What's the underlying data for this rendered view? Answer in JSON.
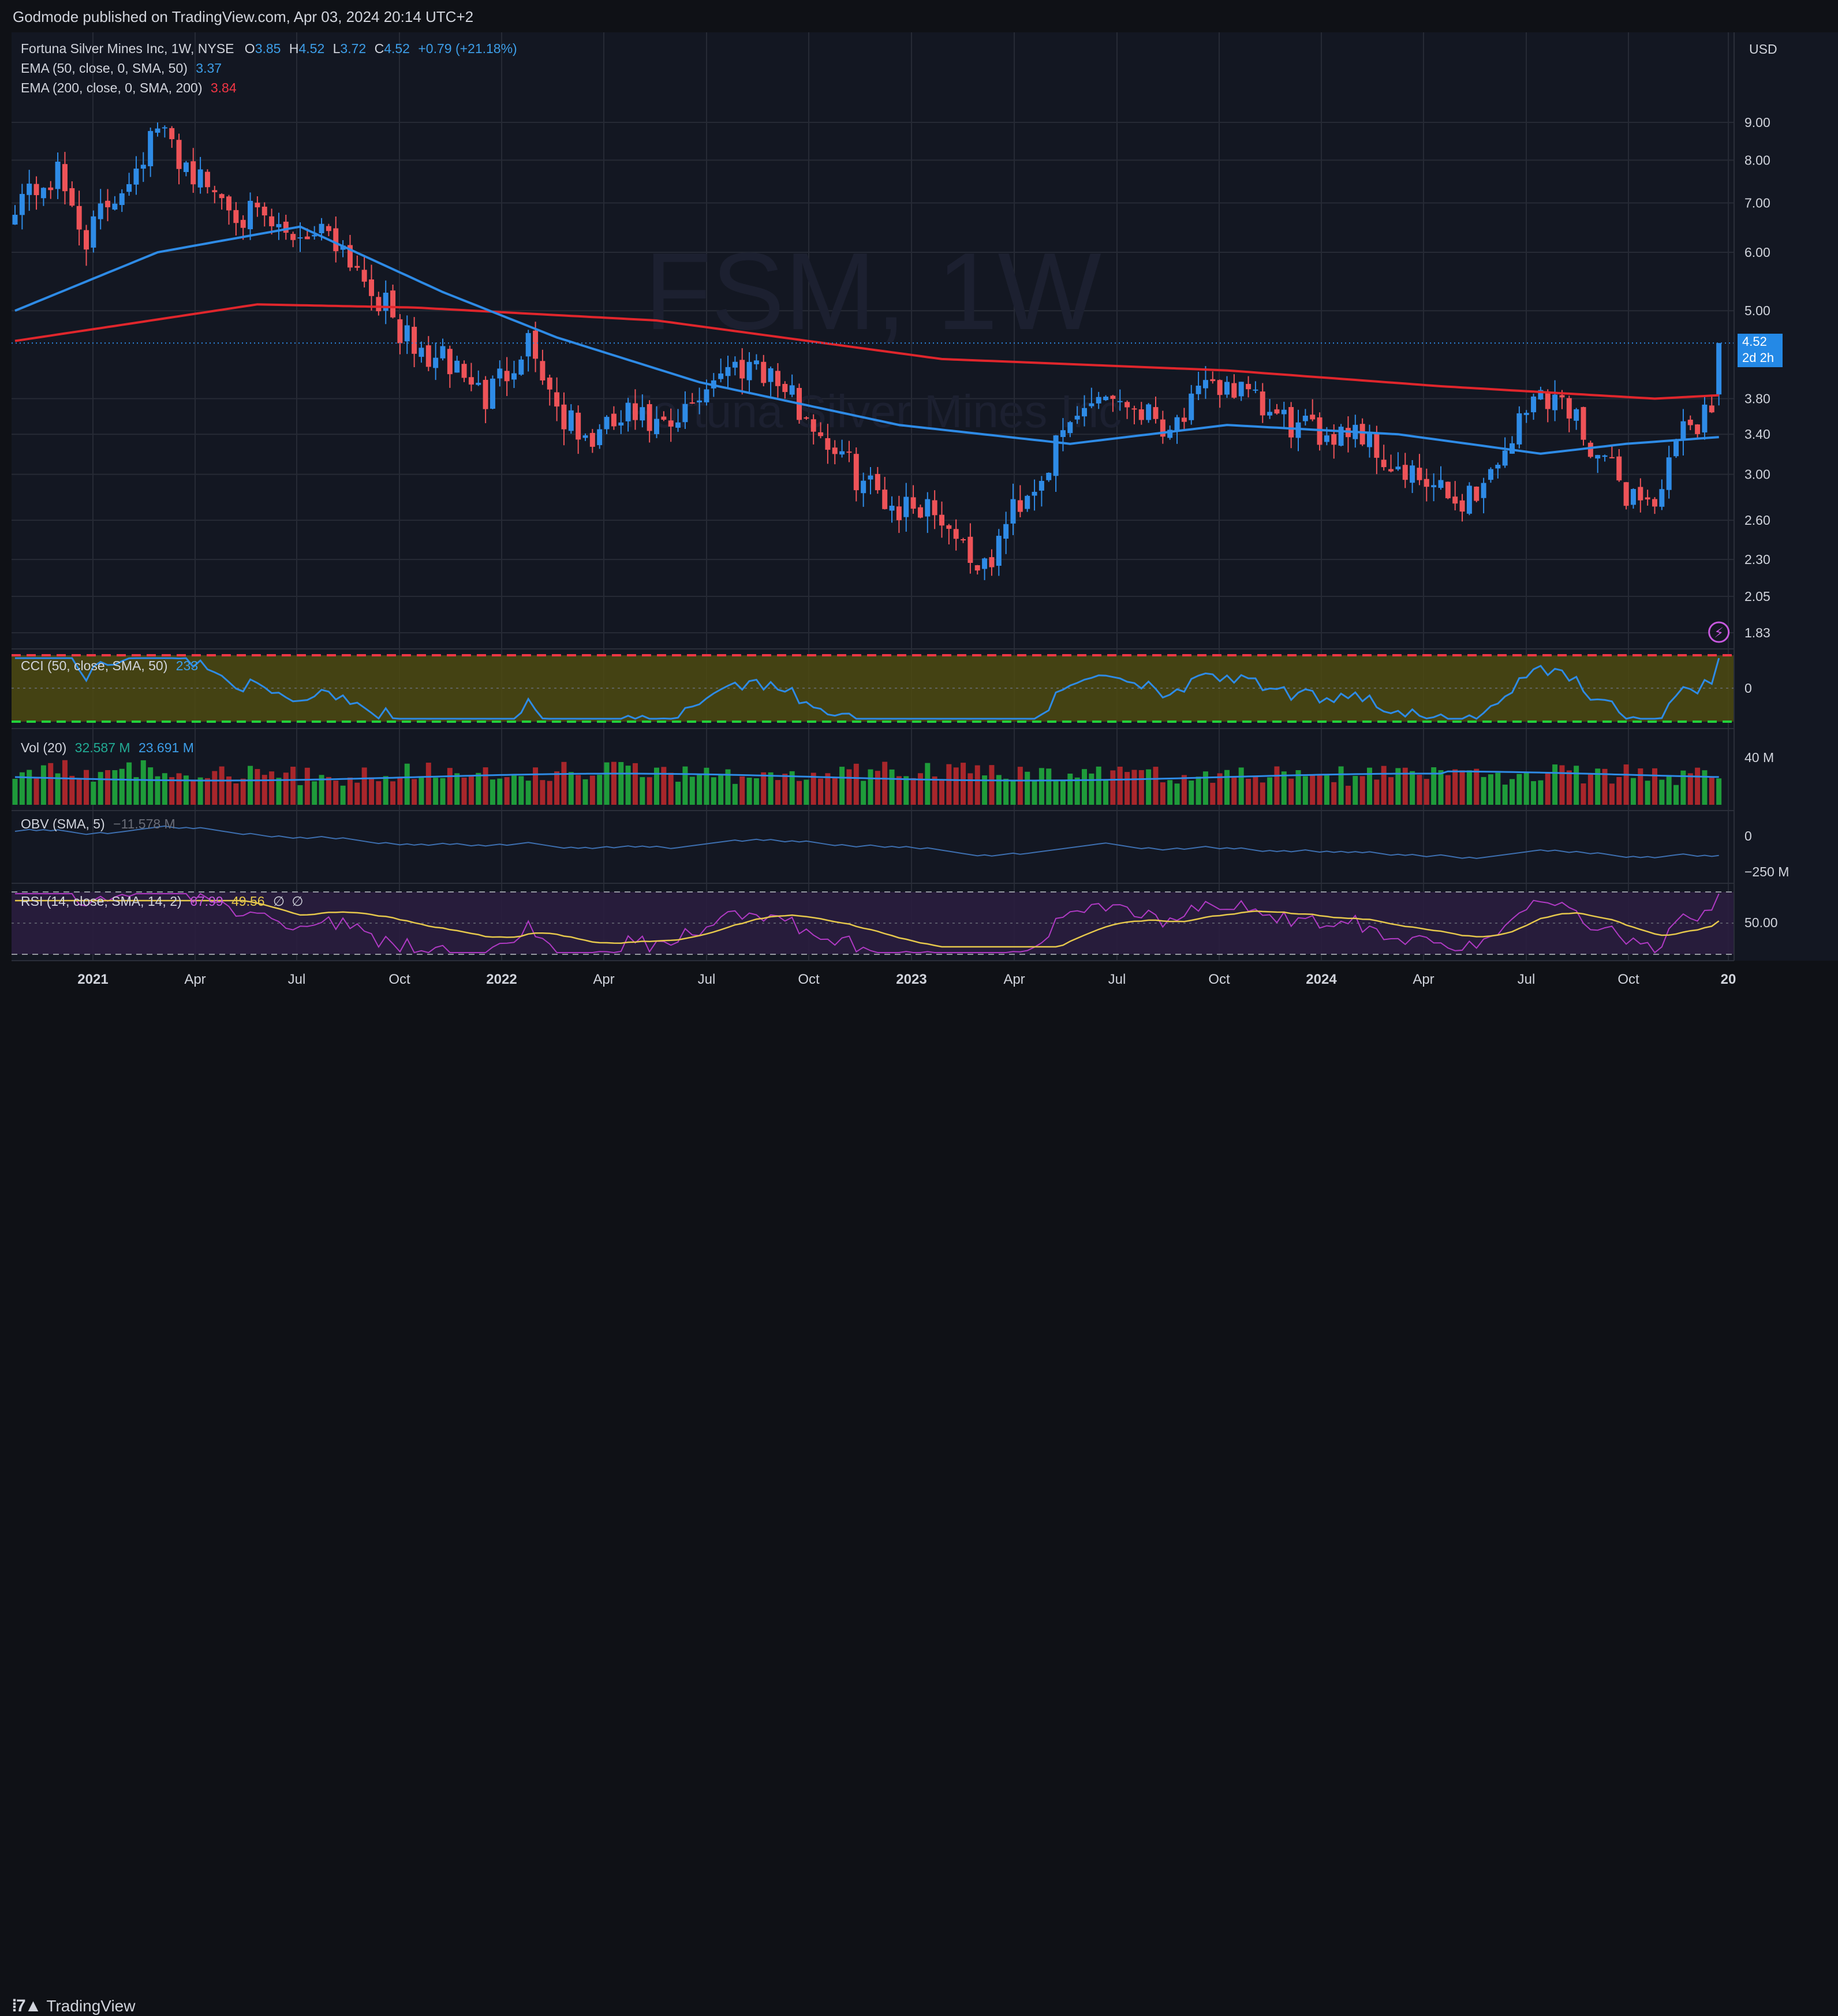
{
  "header": {
    "published": "Godmode published on TradingView.com, Apr 03, 2024 20:14 UTC+2"
  },
  "footer": {
    "brand": "TradingView",
    "logo_icon": "tradingview-logo-icon"
  },
  "currency": "USD",
  "colors": {
    "bg": "#131722",
    "up": "#2e8be6",
    "down": "#ee5358",
    "ema50": "#2e8be6",
    "ema200": "#e0262c",
    "vol_up": "#1e9b3a",
    "vol_down": "#a8262b",
    "cci_band": "#4d4a10",
    "rsi_band": "#2a1d3e"
  },
  "legend": {
    "symbol": "Fortuna Silver Mines Inc, 1W, NYSE",
    "o_label": "O",
    "o": "3.85",
    "h_label": "H",
    "h": "4.52",
    "l_label": "L",
    "l": "3.72",
    "c_label": "C",
    "c": "4.52",
    "change": "+0.79 (+21.18%)",
    "ema50_label": "EMA (50, close, 0, SMA, 50)",
    "ema50_value": "3.37",
    "ema200_label": "EMA (200, close, 0, SMA, 200)",
    "ema200_value": "3.84"
  },
  "watermark": {
    "symbol": "FSM, 1W",
    "name": "Fortuna Silver Mines Inc"
  },
  "price_tag": {
    "price": "4.52",
    "countdown": "2d 2h"
  },
  "indicators": {
    "cci": {
      "label": "CCI (50, close, SMA, 50)",
      "value": "233"
    },
    "vol": {
      "label": "Vol (20)",
      "value1": "32.587 M",
      "value2": "23.691 M"
    },
    "obv": {
      "label": "OBV (SMA, 5)",
      "value": "−11.578 M"
    },
    "rsi": {
      "label": "RSI (14, close, SMA, 14, 2)",
      "value1": "67.99",
      "value2": "49.56",
      "na1": "∅",
      "na2": "∅"
    }
  },
  "chart_data": {
    "type": "candlestick",
    "scale": "log",
    "y_ticks": [
      9.0,
      8.0,
      7.0,
      6.0,
      5.0,
      3.8,
      3.4,
      3.0,
      2.6,
      2.3,
      2.05,
      1.83
    ],
    "x_ticks": [
      "2021",
      "Apr",
      "Jul",
      "Oct",
      "2022",
      "Apr",
      "Jul",
      "Oct",
      "2023",
      "Apr",
      "Jul",
      "Oct",
      "2024",
      "Apr",
      "Jul",
      "Oct",
      "20"
    ],
    "x_tick_bold": [
      true,
      false,
      false,
      false,
      true,
      false,
      false,
      false,
      true,
      false,
      false,
      false,
      true,
      false,
      false,
      false,
      true
    ],
    "cci_ticks": [
      "0"
    ],
    "vol_ticks": [
      "40 M"
    ],
    "obv_ticks": [
      "0",
      "−250 M"
    ],
    "rsi_ticks": [
      "50.00"
    ],
    "close_anchors": [
      [
        0,
        7.1
      ],
      [
        6,
        7.6
      ],
      [
        10,
        6.3
      ],
      [
        15,
        7.4
      ],
      [
        20,
        8.8
      ],
      [
        26,
        7.5
      ],
      [
        32,
        6.8
      ],
      [
        38,
        6.3
      ],
      [
        44,
        6.5
      ],
      [
        50,
        5.4
      ],
      [
        56,
        4.4
      ],
      [
        62,
        4.2
      ],
      [
        66,
        3.8
      ],
      [
        72,
        4.6
      ],
      [
        76,
        3.7
      ],
      [
        80,
        3.3
      ],
      [
        86,
        3.6
      ],
      [
        92,
        3.4
      ],
      [
        98,
        4.1
      ],
      [
        104,
        4.3
      ],
      [
        108,
        3.9
      ],
      [
        112,
        3.5
      ],
      [
        118,
        3.0
      ],
      [
        124,
        2.7
      ],
      [
        128,
        2.75
      ],
      [
        132,
        2.5
      ],
      [
        136,
        2.2
      ],
      [
        140,
        2.7
      ],
      [
        144,
        3.0
      ],
      [
        148,
        3.5
      ],
      [
        152,
        3.9
      ],
      [
        158,
        3.7
      ],
      [
        162,
        3.5
      ],
      [
        166,
        3.8
      ],
      [
        170,
        4.0
      ],
      [
        176,
        3.6
      ],
      [
        182,
        3.4
      ],
      [
        188,
        3.5
      ],
      [
        194,
        3.0
      ],
      [
        198,
        2.9
      ],
      [
        202,
        2.75
      ],
      [
        206,
        2.9
      ],
      [
        210,
        3.4
      ],
      [
        214,
        3.9
      ],
      [
        218,
        3.7
      ],
      [
        222,
        3.2
      ],
      [
        226,
        2.85
      ],
      [
        230,
        2.75
      ],
      [
        234,
        3.4
      ],
      [
        238,
        3.73
      ],
      [
        239,
        4.52
      ]
    ],
    "ema50_anchors": [
      [
        0,
        5.0
      ],
      [
        20,
        6.0
      ],
      [
        40,
        6.5
      ],
      [
        60,
        5.3
      ],
      [
        76,
        4.6
      ],
      [
        96,
        4.0
      ],
      [
        124,
        3.5
      ],
      [
        148,
        3.3
      ],
      [
        170,
        3.5
      ],
      [
        194,
        3.4
      ],
      [
        214,
        3.2
      ],
      [
        226,
        3.3
      ],
      [
        239,
        3.37
      ]
    ],
    "ema200_anchors": [
      [
        0,
        4.55
      ],
      [
        16,
        4.8
      ],
      [
        34,
        5.1
      ],
      [
        56,
        5.05
      ],
      [
        90,
        4.85
      ],
      [
        130,
        4.3
      ],
      [
        170,
        4.15
      ],
      [
        200,
        3.95
      ],
      [
        230,
        3.8
      ],
      [
        239,
        3.84
      ]
    ],
    "last": {
      "open": 3.85,
      "high": 4.52,
      "low": 3.72,
      "close": 4.52
    }
  }
}
